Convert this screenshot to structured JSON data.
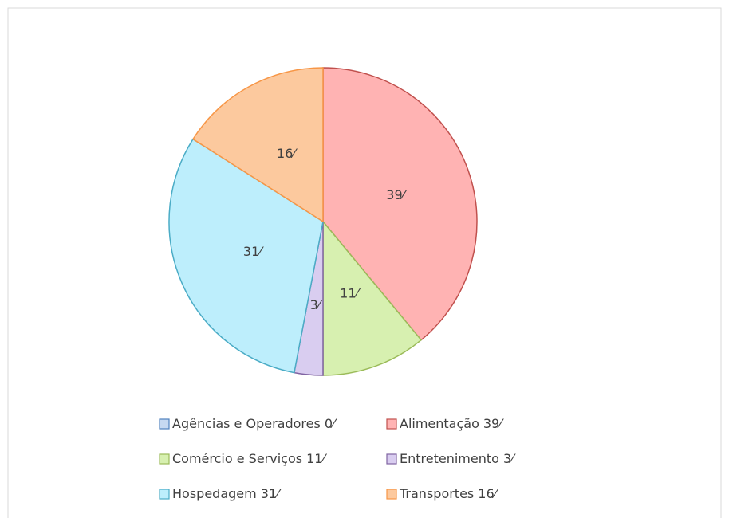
{
  "chart_data": {
    "type": "pie",
    "categories": [
      "Agências e Operadores",
      "Alimentação",
      "Comércio e Serviços",
      "Entretenimento",
      "Hospedagem",
      "Transportes"
    ],
    "values": [
      0,
      39,
      11,
      3,
      31,
      16
    ],
    "value_labels": [
      "0⁄",
      "39⁄",
      "11⁄",
      "3⁄",
      "31⁄",
      "16⁄"
    ],
    "colors": [
      "#4f81bd",
      "#c0504d",
      "#9bbb59",
      "#8064a2",
      "#4bacc6",
      "#f79646"
    ],
    "fill_colors": [
      "#c6d9f1",
      "#ffb3b3",
      "#d7f0b0",
      "#d9cdf0",
      "#bdeefc",
      "#fcc99e"
    ],
    "legend": "bottom"
  }
}
